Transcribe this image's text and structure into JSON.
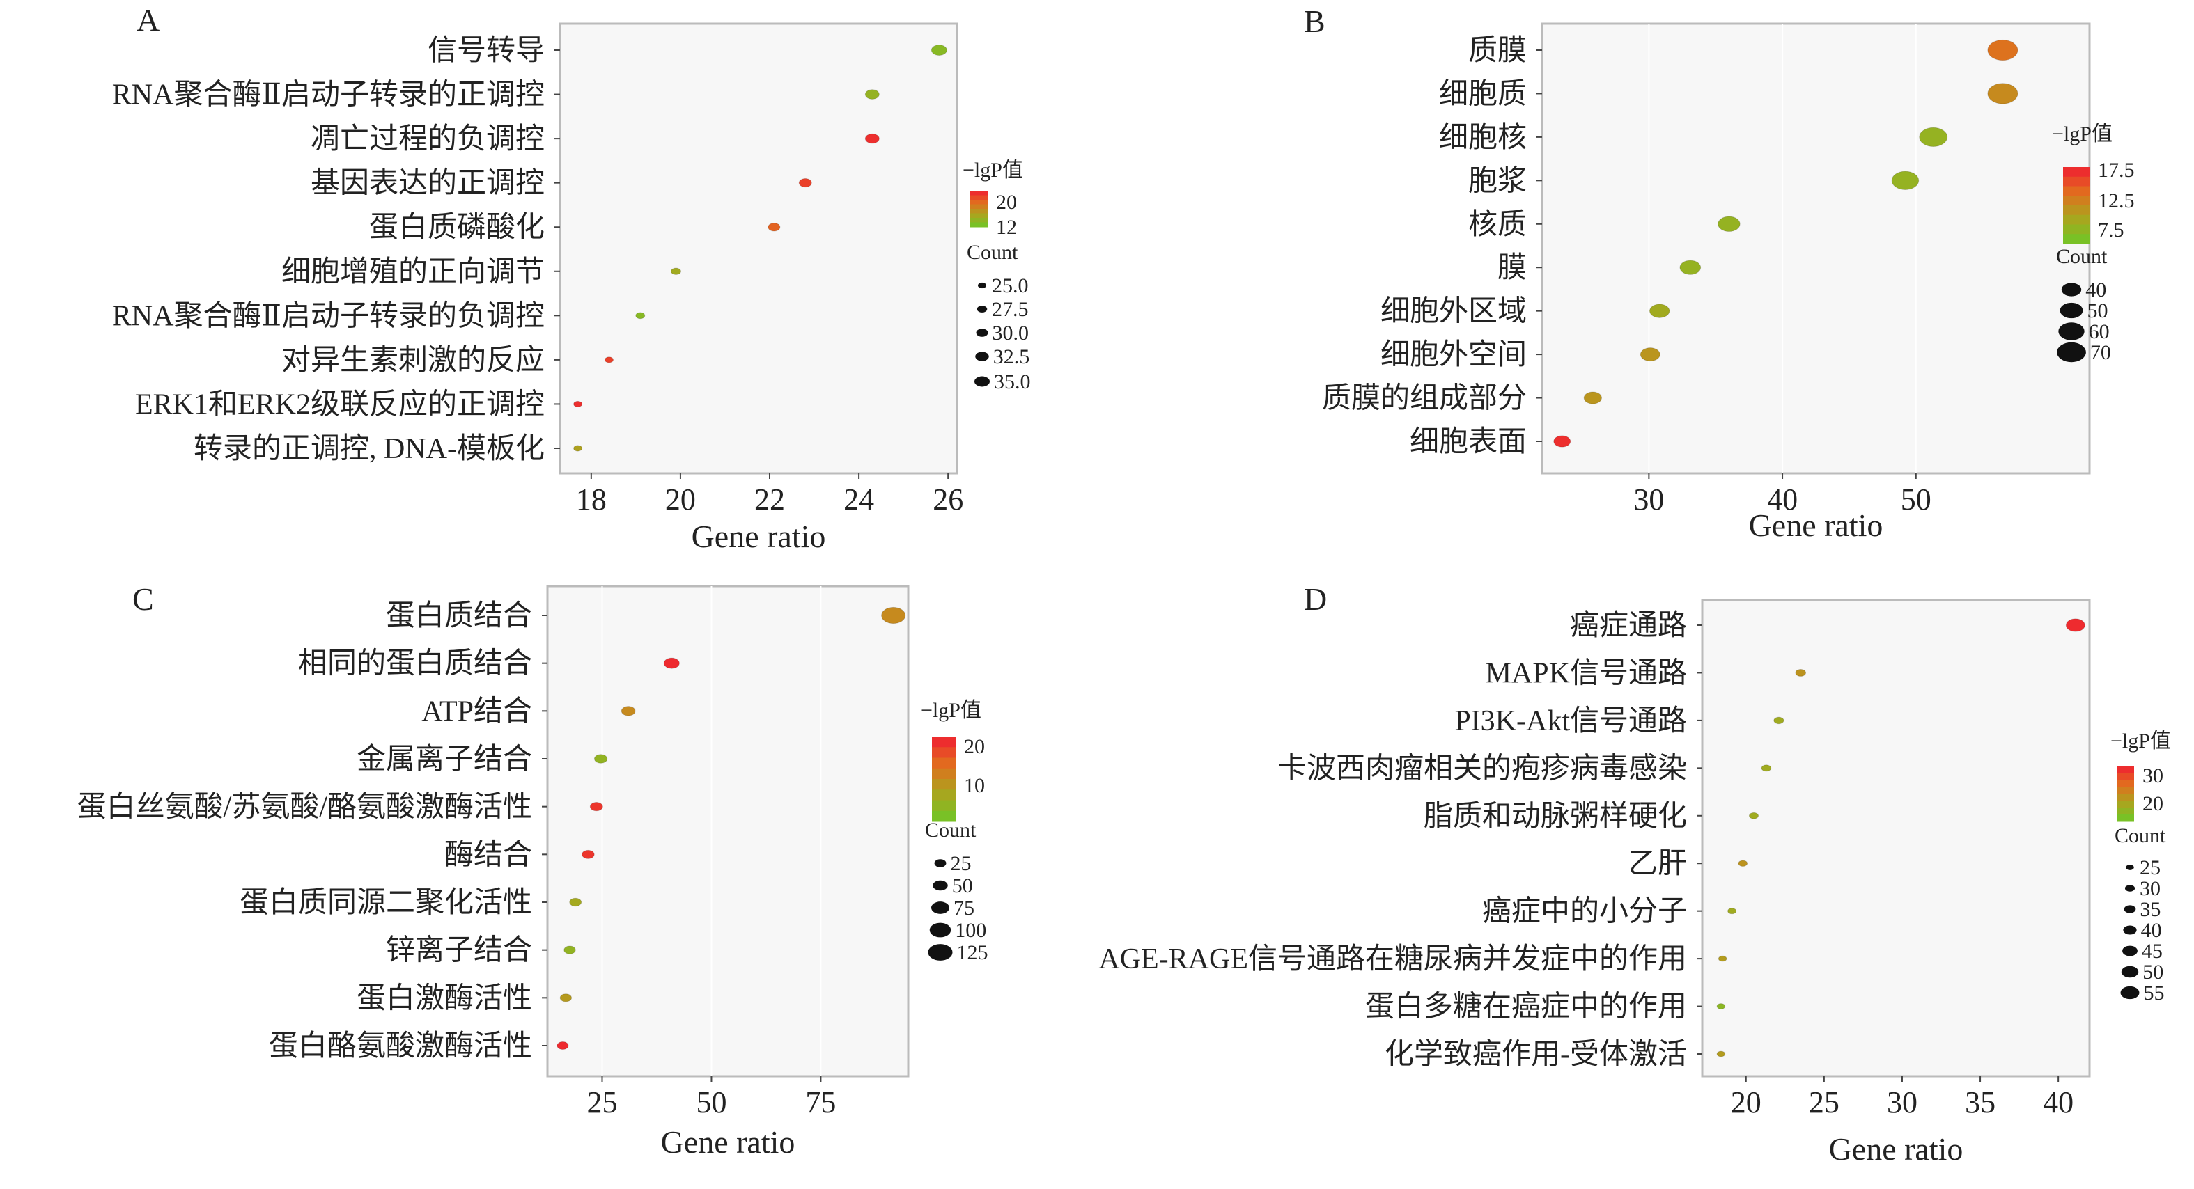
{
  "chart_data": [
    {
      "type": "scatter",
      "panel": "A",
      "xlabel": "Gene ratio",
      "xlim": [
        17.3,
        26.2
      ],
      "xticks": [
        18,
        20,
        22,
        24,
        26
      ],
      "legend_color_title": "−lgP值",
      "color_ticks": [
        20,
        12
      ],
      "color_range": [
        8,
        22
      ],
      "legend_size_title": "Count",
      "size_ticks": [
        "25.0",
        "27.5",
        "30.0",
        "32.5",
        "35.0"
      ],
      "size_range": [
        25,
        35
      ],
      "points": [
        {
          "term": "信号转导",
          "ratio": 25.8,
          "lgP": 10,
          "count": 35
        },
        {
          "term": "RNA聚合酶Ⅱ启动子转录的正调控",
          "ratio": 24.3,
          "lgP": 11,
          "count": 33
        },
        {
          "term": "凋亡过程的负调控",
          "ratio": 24.3,
          "lgP": 21,
          "count": 33
        },
        {
          "term": "基因表达的正调控",
          "ratio": 22.8,
          "lgP": 20,
          "count": 31
        },
        {
          "term": "蛋白质磷酸化",
          "ratio": 22.1,
          "lgP": 18,
          "count": 30
        },
        {
          "term": "细胞增殖的正向调节",
          "ratio": 19.9,
          "lgP": 12,
          "count": 27
        },
        {
          "term": "RNA聚合酶Ⅱ启动子转录的负调控",
          "ratio": 19.1,
          "lgP": 10,
          "count": 26
        },
        {
          "term": "对异生素刺激的反应",
          "ratio": 18.4,
          "lgP": 20,
          "count": 25
        },
        {
          "term": "ERK1和ERK2级联反应的正调控",
          "ratio": 17.7,
          "lgP": 21,
          "count": 24
        },
        {
          "term": "转录的正调控, DNA-模板化",
          "ratio": 17.7,
          "lgP": 13,
          "count": 24
        }
      ]
    },
    {
      "type": "scatter",
      "panel": "B",
      "xlabel": "Gene ratio",
      "xlim": [
        22,
        63
      ],
      "xticks": [
        30,
        40,
        50
      ],
      "legend_color_title": "−lgP值",
      "color_ticks": [
        17.5,
        12.5,
        7.5
      ],
      "color_range": [
        5,
        19
      ],
      "legend_size_title": "Count",
      "size_ticks": [
        "40",
        "50",
        "60",
        "70"
      ],
      "size_range": [
        30,
        75
      ],
      "points": [
        {
          "term": "质膜",
          "ratio": 56.5,
          "lgP": 14,
          "count": 73
        },
        {
          "term": "细胞质",
          "ratio": 56.5,
          "lgP": 12,
          "count": 73
        },
        {
          "term": "细胞核",
          "ratio": 51.3,
          "lgP": 8,
          "count": 66
        },
        {
          "term": "胞浆",
          "ratio": 49.2,
          "lgP": 8,
          "count": 63
        },
        {
          "term": "核质",
          "ratio": 36.0,
          "lgP": 8,
          "count": 47
        },
        {
          "term": "膜",
          "ratio": 33.1,
          "lgP": 8,
          "count": 43
        },
        {
          "term": "细胞外区域",
          "ratio": 30.8,
          "lgP": 9,
          "count": 40
        },
        {
          "term": "细胞外空间",
          "ratio": 30.1,
          "lgP": 11,
          "count": 39
        },
        {
          "term": "质膜的组成部分",
          "ratio": 25.8,
          "lgP": 11,
          "count": 33
        },
        {
          "term": "细胞表面",
          "ratio": 23.5,
          "lgP": 18,
          "count": 30
        }
      ]
    },
    {
      "type": "scatter",
      "panel": "C",
      "xlabel": "Gene ratio",
      "xlim": [
        12.5,
        95
      ],
      "xticks": [
        25,
        50,
        75
      ],
      "legend_color_title": "−lgP值",
      "color_ticks": [
        20,
        10
      ],
      "color_range": [
        2,
        22
      ],
      "legend_size_title": "Count",
      "size_ticks": [
        "25",
        "50",
        "75",
        "100",
        "125"
      ],
      "size_range": [
        20,
        130
      ],
      "points": [
        {
          "term": "蛋白质结合",
          "ratio": 91.6,
          "lgP": 12,
          "count": 120
        },
        {
          "term": "相同的蛋白质结合",
          "ratio": 40.9,
          "lgP": 21,
          "count": 54
        },
        {
          "term": "ATP结合",
          "ratio": 31.0,
          "lgP": 12,
          "count": 41
        },
        {
          "term": "金属离子结合",
          "ratio": 24.7,
          "lgP": 6,
          "count": 33
        },
        {
          "term": "蛋白丝氨酸/苏氨酸/酪氨酸激酶活性",
          "ratio": 23.7,
          "lgP": 20,
          "count": 31
        },
        {
          "term": "酶结合",
          "ratio": 21.8,
          "lgP": 20,
          "count": 29
        },
        {
          "term": "蛋白质同源二聚化活性",
          "ratio": 18.9,
          "lgP": 8,
          "count": 25
        },
        {
          "term": "锌离子结合",
          "ratio": 17.6,
          "lgP": 6,
          "count": 23
        },
        {
          "term": "蛋白激酶活性",
          "ratio": 16.7,
          "lgP": 10,
          "count": 22
        },
        {
          "term": "蛋白酪氨酸激酶活性",
          "ratio": 16.0,
          "lgP": 21,
          "count": 21
        }
      ]
    },
    {
      "type": "scatter",
      "panel": "D",
      "xlabel": "Gene ratio",
      "xlim": [
        17.2,
        42.0
      ],
      "xticks": [
        20,
        25,
        30,
        35,
        40
      ],
      "legend_color_title": "−lgP值",
      "color_ticks": [
        30,
        20
      ],
      "color_range": [
        14,
        32
      ],
      "legend_size_title": "Count",
      "size_ticks": [
        "25",
        "30",
        "35",
        "40",
        "45",
        "50",
        "55"
      ],
      "size_range": [
        22,
        57
      ],
      "points": [
        {
          "term": "癌症通路",
          "ratio": 41.1,
          "lgP": 31,
          "count": 55
        },
        {
          "term": "MAPK信号通路",
          "ratio": 23.5,
          "lgP": 22,
          "count": 31
        },
        {
          "term": "PI3K-Akt信号通路",
          "ratio": 22.1,
          "lgP": 19,
          "count": 30
        },
        {
          "term": "卡波西肉瘤相关的疱疹病毒感染",
          "ratio": 21.3,
          "lgP": 19,
          "count": 29
        },
        {
          "term": "脂质和动脉粥样硬化",
          "ratio": 20.5,
          "lgP": 19,
          "count": 28
        },
        {
          "term": "乙肝",
          "ratio": 19.8,
          "lgP": 22,
          "count": 27
        },
        {
          "term": "癌症中的小分子",
          "ratio": 19.1,
          "lgP": 19,
          "count": 26
        },
        {
          "term": "AGE-RAGE信号通路在糖尿病并发症中的作用",
          "ratio": 18.5,
          "lgP": 21,
          "count": 25
        },
        {
          "term": "蛋白多糖在癌症中的作用",
          "ratio": 18.4,
          "lgP": 17,
          "count": 25
        },
        {
          "term": "化学致癌作用-受体激活",
          "ratio": 18.4,
          "lgP": 21,
          "count": 25
        }
      ]
    }
  ]
}
